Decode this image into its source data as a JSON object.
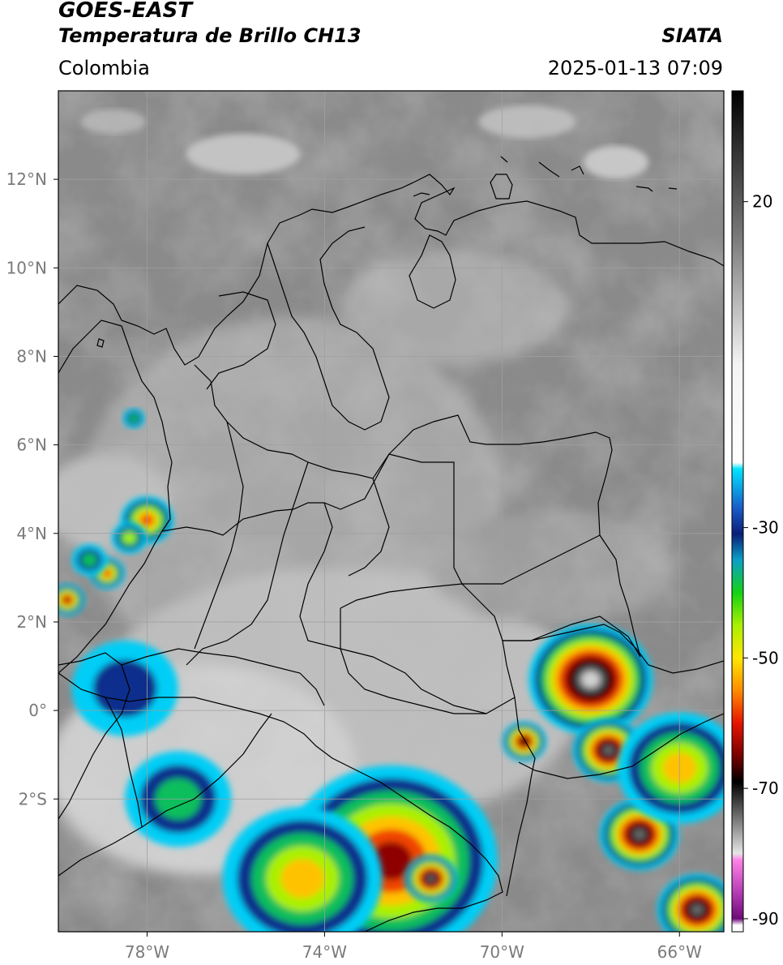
{
  "header": {
    "satellite": "GOES-EAST",
    "product": "Temperatura de Brillo CH13",
    "region": "Colombia",
    "agency": "SIATA",
    "datetime": "2025-01-13 07:09"
  },
  "map": {
    "projection": "lat-lon",
    "lon_range": [
      -80,
      -65
    ],
    "lat_range": [
      -5,
      14
    ],
    "lat_ticks": [
      {
        "value": 12,
        "label": "12°N"
      },
      {
        "value": 10,
        "label": "10°N"
      },
      {
        "value": 8,
        "label": "8°N"
      },
      {
        "value": 6,
        "label": "6°N"
      },
      {
        "value": 4,
        "label": "4°N"
      },
      {
        "value": 2,
        "label": "2°N"
      },
      {
        "value": 0,
        "label": "0°"
      },
      {
        "value": -2,
        "label": "2°S"
      }
    ],
    "lon_ticks": [
      {
        "value": -78,
        "label": "78°W"
      },
      {
        "value": -74,
        "label": "74°W"
      },
      {
        "value": -70,
        "label": "70°W"
      },
      {
        "value": -66,
        "label": "66°W"
      }
    ],
    "grid": true,
    "background_color": "#8a8a8a",
    "boundary_color": "#000000"
  },
  "colorbar": {
    "min": -92,
    "max": 37,
    "tick_labels": [
      {
        "value": 20,
        "label": "20"
      },
      {
        "value": -30,
        "label": "-30"
      },
      {
        "value": -50,
        "label": "-50"
      },
      {
        "value": -70,
        "label": "-70"
      },
      {
        "value": -90,
        "label": "-90"
      }
    ],
    "stops": [
      {
        "value": 37,
        "color": "#000000"
      },
      {
        "value": 15,
        "color": "#777777"
      },
      {
        "value": -5,
        "color": "#f4f4f4"
      },
      {
        "value": -20,
        "color": "#ffffff"
      },
      {
        "value": -21,
        "color": "#00e5ff"
      },
      {
        "value": -27,
        "color": "#1a5cc8"
      },
      {
        "value": -31,
        "color": "#0a1e78"
      },
      {
        "value": -35,
        "color": "#0aa0c8"
      },
      {
        "value": -40,
        "color": "#14d214"
      },
      {
        "value": -45,
        "color": "#aaf000"
      },
      {
        "value": -50,
        "color": "#ffe600"
      },
      {
        "value": -55,
        "color": "#ff8c00"
      },
      {
        "value": -60,
        "color": "#e61400"
      },
      {
        "value": -65,
        "color": "#780000"
      },
      {
        "value": -69,
        "color": "#000000"
      },
      {
        "value": -75,
        "color": "#7d7d7d"
      },
      {
        "value": -80,
        "color": "#e6e6e6"
      },
      {
        "value": -81,
        "color": "#ff82e6"
      },
      {
        "value": -86,
        "color": "#b43cb4"
      },
      {
        "value": -90,
        "color": "#6e0a78"
      },
      {
        "value": -91,
        "color": "#ffffff"
      }
    ]
  },
  "storm_cells": [
    {
      "lon": -68.0,
      "lat": 0.7,
      "r_deg": 1.4,
      "min_bt": -80
    },
    {
      "lon": -67.6,
      "lat": -0.9,
      "r_deg": 0.8,
      "min_bt": -78
    },
    {
      "lon": -66.9,
      "lat": -2.8,
      "r_deg": 0.9,
      "min_bt": -78
    },
    {
      "lon": -65.6,
      "lat": -4.5,
      "r_deg": 0.9,
      "min_bt": -76
    },
    {
      "lon": -72.5,
      "lat": -3.4,
      "r_deg": 2.4,
      "min_bt": -65
    },
    {
      "lon": -74.5,
      "lat": -3.8,
      "r_deg": 1.8,
      "min_bt": -55
    },
    {
      "lon": -71.6,
      "lat": -3.8,
      "r_deg": 0.6,
      "min_bt": -75
    },
    {
      "lon": -69.5,
      "lat": -0.7,
      "r_deg": 0.5,
      "min_bt": -70
    },
    {
      "lon": -78.0,
      "lat": 4.3,
      "r_deg": 0.6,
      "min_bt": -62
    },
    {
      "lon": -78.4,
      "lat": 3.9,
      "r_deg": 0.4,
      "min_bt": -45
    },
    {
      "lon": -79.8,
      "lat": 2.5,
      "r_deg": 0.4,
      "min_bt": -65
    },
    {
      "lon": -78.9,
      "lat": 3.1,
      "r_deg": 0.4,
      "min_bt": -60
    },
    {
      "lon": -79.3,
      "lat": 3.4,
      "r_deg": 0.4,
      "min_bt": -40
    },
    {
      "lon": -78.3,
      "lat": 6.6,
      "r_deg": 0.25,
      "min_bt": -42
    },
    {
      "lon": -78.5,
      "lat": 0.5,
      "r_deg": 1.2,
      "min_bt": -35
    },
    {
      "lon": -77.3,
      "lat": -2.0,
      "r_deg": 1.2,
      "min_bt": -40
    },
    {
      "lon": -66.0,
      "lat": -1.3,
      "r_deg": 1.4,
      "min_bt": -55
    }
  ]
}
